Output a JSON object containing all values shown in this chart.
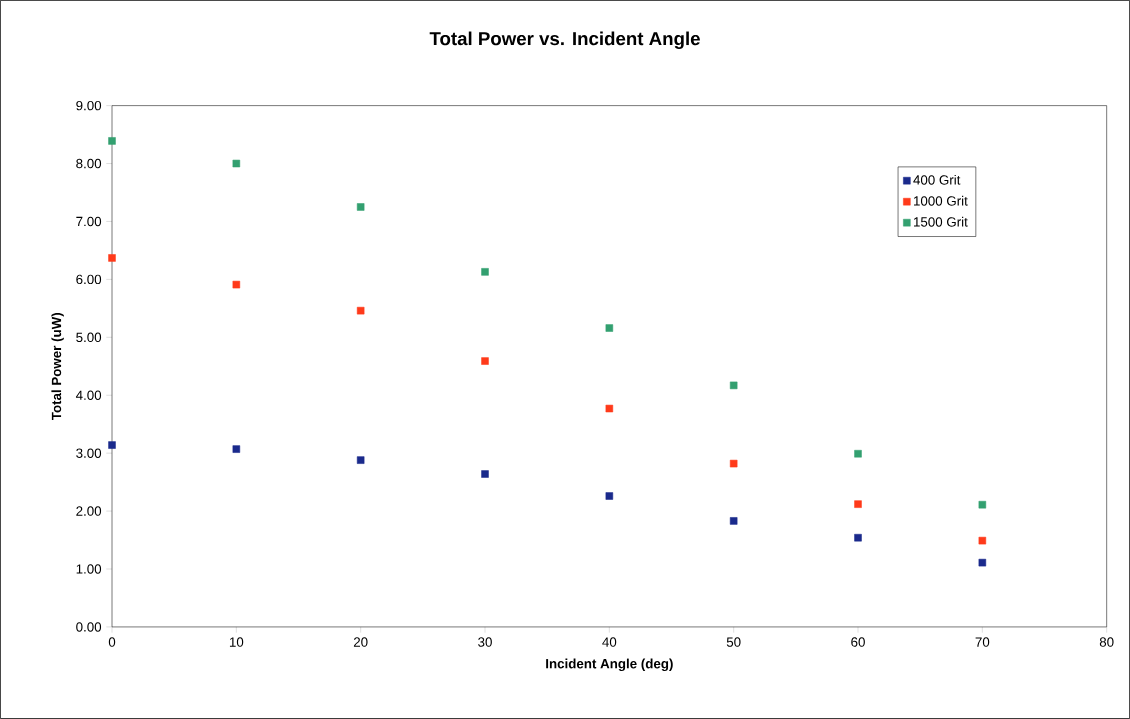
{
  "chart_data": {
    "type": "scatter",
    "title": "Total Power vs. Incident Angle",
    "xlabel": "Incident Angle (deg)",
    "ylabel": "Total Power (uW)",
    "x": [
      0,
      10,
      20,
      30,
      40,
      50,
      60,
      70
    ],
    "series": [
      {
        "name": "400 Grit",
        "color": "#1a2a8c",
        "values": [
          3.14,
          3.07,
          2.88,
          2.64,
          2.26,
          1.83,
          1.54,
          1.11
        ]
      },
      {
        "name": "1000 Grit",
        "color": "#ff3a1a",
        "values": [
          6.37,
          5.91,
          5.46,
          4.59,
          3.77,
          2.82,
          2.12,
          1.49
        ]
      },
      {
        "name": "1500 Grit",
        "color": "#33a070",
        "values": [
          8.39,
          8.0,
          7.25,
          6.13,
          5.16,
          4.17,
          2.99,
          2.11
        ]
      }
    ],
    "xlim": [
      0,
      80
    ],
    "ylim": [
      0,
      9
    ],
    "xticks": [
      0,
      10,
      20,
      30,
      40,
      50,
      60,
      70,
      80
    ],
    "yticks": [
      {
        "value": 0,
        "label": "0.00"
      },
      {
        "value": 1,
        "label": "1.00"
      },
      {
        "value": 2,
        "label": "2.00"
      },
      {
        "value": 3,
        "label": "3.00"
      },
      {
        "value": 4,
        "label": "4.00"
      },
      {
        "value": 5,
        "label": "5.00"
      },
      {
        "value": 6,
        "label": "6.00"
      },
      {
        "value": 7,
        "label": "7.00"
      },
      {
        "value": 8,
        "label": "8.00"
      },
      {
        "value": 9,
        "label": "9.00"
      }
    ],
    "grid": false,
    "legend": "top right",
    "marker": "square"
  }
}
